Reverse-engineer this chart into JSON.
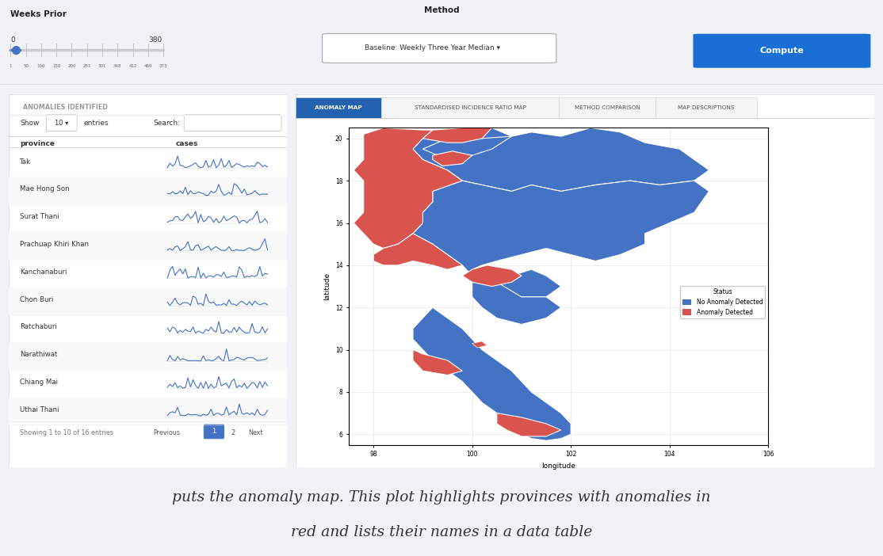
{
  "bg_color": "#f0f2f5",
  "panel_bg": "#ffffff",
  "title_text_line1": "puts the anomaly map. This plot highlights provinces with anomalies in",
  "title_text_line2": "red and lists their names in a data table",
  "weeks_prior_label": "Weeks Prior",
  "weeks_prior_left": "0",
  "weeks_prior_right": "380",
  "slider_ticks": [
    "1",
    "50",
    "100",
    "150",
    "200",
    "251",
    "301",
    "348",
    "412",
    "469",
    "373"
  ],
  "anomalies_header": "ANOMALIES IDENTIFIED",
  "show_label": "Show",
  "show_value": "10",
  "entries_label": "entries",
  "search_label": "Search:",
  "col_province": "province",
  "col_cases": "cases",
  "provinces": [
    "Tak",
    "Mae Hong Son",
    "Surat Thani",
    "Prachuap Khiri Khan",
    "Kanchanaburi",
    "Chon Buri",
    "Ratchaburi",
    "Narathiwat",
    "Chiang Mai",
    "Uthai Thani"
  ],
  "pagination_text": "Showing 1 to 10 of 16 entries",
  "method_label": "Method",
  "method_value": "Baseline: Weekly Three Year Median",
  "compute_btn": "Compute",
  "compute_btn_color": "#1a6fd4",
  "tab_anomaly": "ANOMALY MAP",
  "tab_sir": "STANDARDISED INCIDENCE RATIO MAP",
  "tab_method": "METHOD COMPARISON",
  "tab_desc": "MAP DESCRIPTIONS",
  "tab_active_color": "#2362b0",
  "tab_active_text": "#ffffff",
  "map_xlabel": "longitude",
  "map_ylabel": "latitude",
  "legend_no_anomaly": "No Anomaly Detected",
  "legend_anomaly": "Anomaly Detected",
  "color_no_anomaly": "#4472c4",
  "color_anomaly": "#d9534f",
  "status_label": "Status",
  "map_xlim": [
    97.5,
    106.0
  ],
  "map_ylim": [
    5.5,
    20.5
  ],
  "map_xticks": [
    98.0,
    100.0,
    102.0,
    104.0,
    106.0
  ],
  "map_yticks": [
    6.0,
    8.0,
    10.0,
    12.0,
    14.0,
    16.0,
    18.0,
    20.0
  ]
}
